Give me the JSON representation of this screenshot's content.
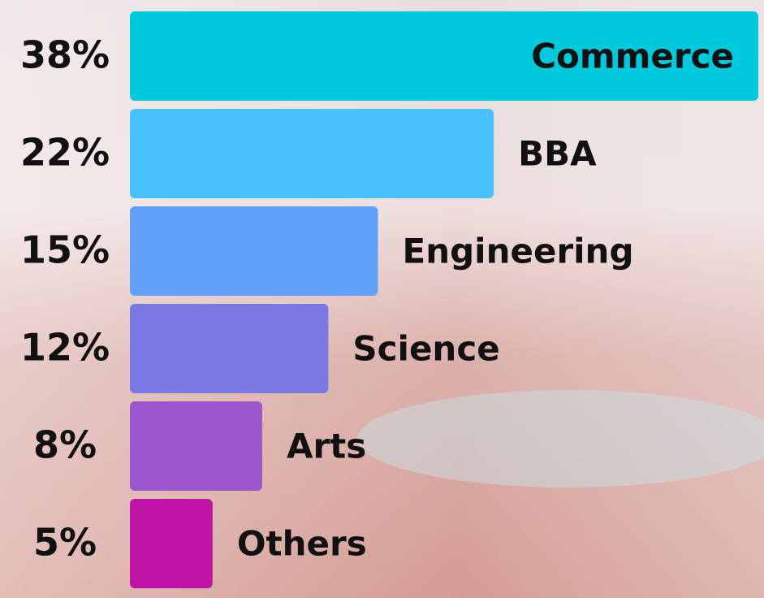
{
  "chart_data": {
    "type": "bar",
    "orientation": "horizontal",
    "categories": [
      "Commerce",
      "BBA",
      "Engineering",
      "Science",
      "Arts",
      "Others"
    ],
    "values": [
      38,
      22,
      15,
      12,
      8,
      5
    ],
    "value_labels": [
      "38%",
      "22%",
      "15%",
      "12%",
      "8%",
      "5%"
    ],
    "colors": [
      "#00c9dd",
      "#46c1fb",
      "#61a1f7",
      "#7a79e1",
      "#9b56cd",
      "#bf14a6"
    ]
  }
}
